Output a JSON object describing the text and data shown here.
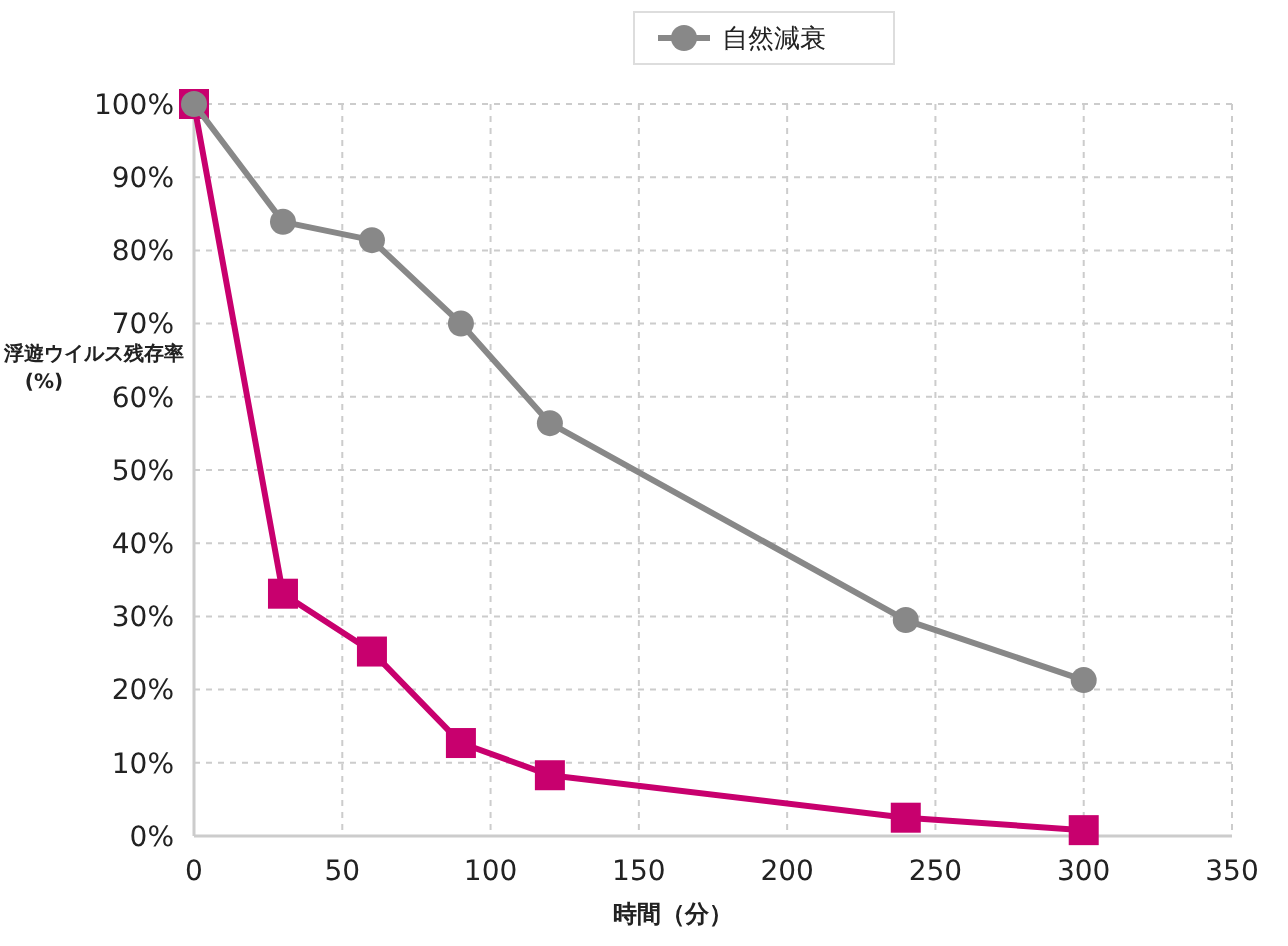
{
  "chart_data": {
    "type": "line",
    "xlabel": "時間（分）",
    "ylabel": "浮遊ウイルス残存率\n(%)",
    "x": [
      0,
      30,
      60,
      90,
      120,
      240,
      300
    ],
    "series": [
      {
        "color": "#c8006e",
        "marker": "square",
        "values": [
          100,
          33.1,
          25.2,
          12.7,
          8.3,
          2.5,
          0.8
        ]
      },
      {
        "name": "自然減衰",
        "color": "#888888",
        "marker": "circle",
        "values": [
          100,
          83.9,
          81.4,
          70,
          56.4,
          29.5,
          21.3
        ]
      }
    ],
    "xlim": [
      0,
      350
    ],
    "xticks": [
      0,
      50,
      100,
      150,
      200,
      250,
      300,
      350
    ],
    "ylim": [
      0,
      100
    ],
    "yticks": [
      {
        "value": 0,
        "label": "0%"
      },
      {
        "value": 10,
        "label": "10%"
      },
      {
        "value": 20,
        "label": "20%"
      },
      {
        "value": 30,
        "label": "30%"
      },
      {
        "value": 40,
        "label": "40%"
      },
      {
        "value": 50,
        "label": "50%"
      },
      {
        "value": 60,
        "label": "60%"
      },
      {
        "value": 70,
        "label": "70%"
      },
      {
        "value": 80,
        "label": "80%"
      },
      {
        "value": 90,
        "label": "90%"
      },
      {
        "value": 100,
        "label": "100%"
      }
    ],
    "grid": true,
    "legend": "top",
    "line_style": "solid"
  }
}
